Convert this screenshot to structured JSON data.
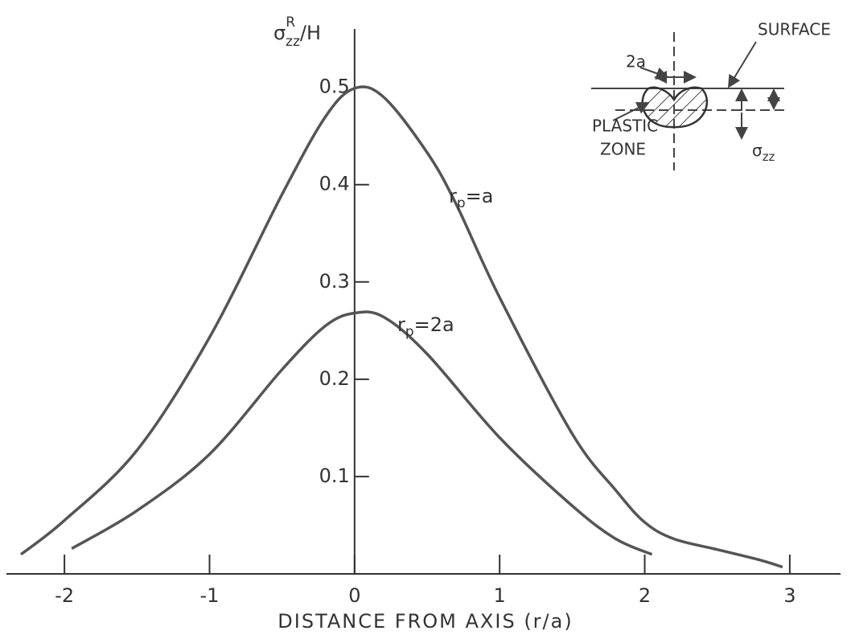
{
  "chart_data": {
    "type": "line",
    "ylabel": {
      "base": "σ",
      "sup": "R",
      "sub": "zz",
      "rest": "/H"
    },
    "xlabel": "DISTANCE  FROM  AXIS (r/a)",
    "xlim": [
      -2.4,
      3.35
    ],
    "ylim": [
      0,
      0.56
    ],
    "xticks": [
      -2,
      -1,
      0,
      1,
      2,
      3
    ],
    "yticks": [
      0.1,
      0.2,
      0.3,
      0.4,
      0.5
    ],
    "series": [
      {
        "label": {
          "base": "r",
          "sub": "p",
          "rest": "=a"
        },
        "color": "#555555",
        "x": [
          -2.3,
          -2,
          -1.5,
          -1,
          -0.5,
          -0.2,
          0,
          0.2,
          0.5,
          0.7,
          1,
          1.5,
          1.8,
          2,
          2.2,
          2.5,
          2.8,
          2.95
        ],
        "values": [
          0.02,
          0.055,
          0.127,
          0.243,
          0.39,
          0.47,
          0.499,
          0.49,
          0.433,
          0.38,
          0.284,
          0.144,
          0.086,
          0.053,
          0.036,
          0.025,
          0.014,
          0.007
        ]
      },
      {
        "label": {
          "base": "r",
          "sub": "p",
          "rest": "=2a"
        },
        "color": "#555555",
        "x": [
          -1.95,
          -1.5,
          -1,
          -0.5,
          -0.2,
          0,
          0.2,
          0.5,
          1,
          1.5,
          1.8,
          2.05
        ],
        "values": [
          0.026,
          0.065,
          0.123,
          0.21,
          0.255,
          0.268,
          0.264,
          0.226,
          0.14,
          0.07,
          0.036,
          0.02
        ]
      }
    ],
    "inset": {
      "width_label": "2a",
      "surface_label": "SURFACE",
      "zone_label": [
        "PLASTIC",
        "ZONE"
      ],
      "stress_label": {
        "base": "σ",
        "sub": "zz"
      }
    }
  }
}
